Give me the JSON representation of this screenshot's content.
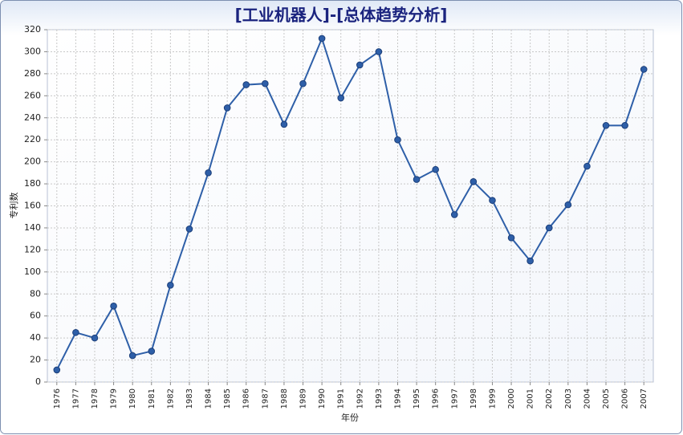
{
  "chart_data": {
    "type": "line",
    "title": "[工业机器人]-[总体趋势分析]",
    "x_label": "年份",
    "y_label": "专利数",
    "categories": [
      "1976",
      "1977",
      "1978",
      "1979",
      "1980",
      "1981",
      "1982",
      "1983",
      "1984",
      "1985",
      "1986",
      "1987",
      "1988",
      "1989",
      "1990",
      "1991",
      "1992",
      "1993",
      "1994",
      "1995",
      "1996",
      "1997",
      "1998",
      "1999",
      "2000",
      "2001",
      "2002",
      "2003",
      "2004",
      "2005",
      "2006",
      "2007"
    ],
    "series": [
      {
        "name": "专利数",
        "color": "#2e5fa8",
        "values": [
          11,
          45,
          40,
          69,
          24,
          28,
          88,
          139,
          190,
          249,
          270,
          271,
          234,
          271,
          312,
          258,
          288,
          300,
          220,
          184,
          193,
          152,
          182,
          165,
          131,
          110,
          140,
          161,
          196,
          233,
          233,
          284
        ]
      }
    ],
    "ylim": [
      0,
      320
    ],
    "yticks": [
      0,
      20,
      40,
      60,
      80,
      100,
      120,
      140,
      160,
      180,
      200,
      220,
      240,
      260,
      280,
      300,
      320
    ],
    "grid": true
  }
}
